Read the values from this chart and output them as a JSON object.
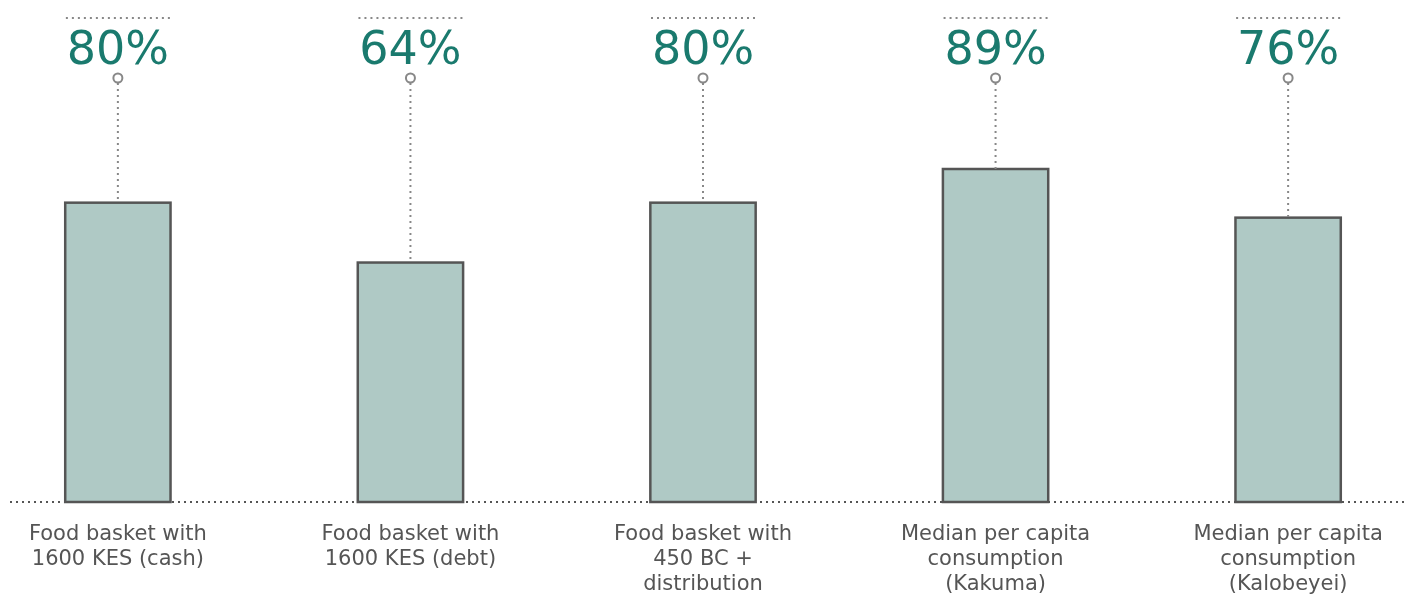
{
  "chart_data": {
    "type": "bar",
    "categories": [
      "Food basket with 1600 KES (cash)",
      "Food basket with 1600 KES (debt)",
      "Food basket with 450 BC + distribution",
      "Median per capita consumption (Kakuma)",
      "Median per capita consumption (Kalobeyei)"
    ],
    "values": [
      80,
      64,
      80,
      89,
      76
    ],
    "value_labels": [
      "80%",
      "64%",
      "80%",
      "89%",
      "76%"
    ],
    "color": "#afc9c5",
    "relative": false
  }
}
